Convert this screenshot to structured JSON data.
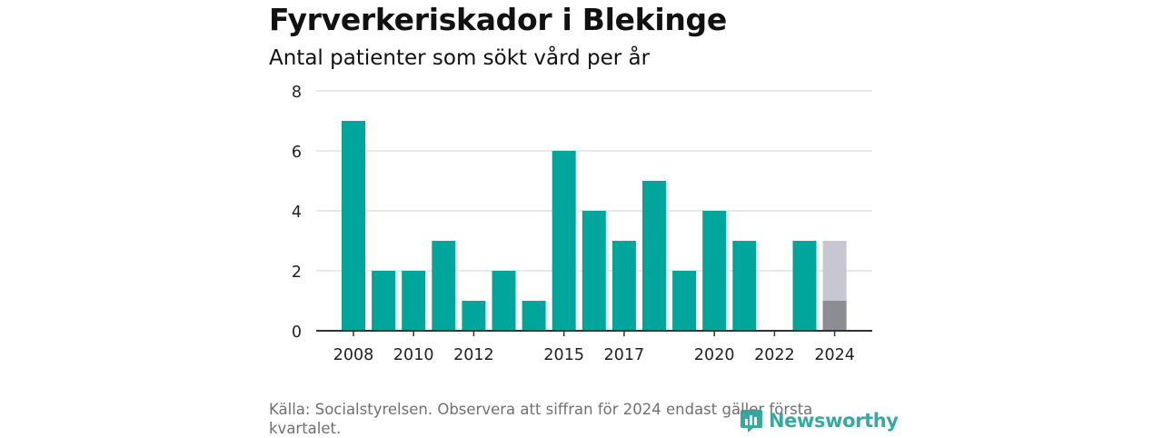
{
  "chart_data": {
    "type": "bar",
    "title": "Fyrverkeriskador i Blekinge",
    "subtitle": "Antal patienter som sökt vård per år",
    "categories": [
      2008,
      2009,
      2010,
      2011,
      2012,
      2013,
      2014,
      2015,
      2016,
      2017,
      2018,
      2019,
      2020,
      2021,
      2022,
      2023,
      2024
    ],
    "values": [
      7,
      2,
      2,
      3,
      1,
      2,
      1,
      6,
      4,
      3,
      5,
      2,
      4,
      3,
      0,
      3,
      1
    ],
    "highlight": {
      "category": 2024,
      "partial_value": 1,
      "full_value": 3,
      "partial_color": "#8c8c94",
      "full_color": "#c8c6d2"
    },
    "x_tick_labels": [
      "2008",
      "2010",
      "2012",
      "2015",
      "2017",
      "2020",
      "2022",
      "2024"
    ],
    "y_ticks": [
      0,
      2,
      4,
      6,
      8
    ],
    "ylim": [
      0,
      8
    ],
    "grid": true,
    "legend": "none",
    "colors": {
      "bar": "#00a59b",
      "grid": "#dcdcdc",
      "axis": "#333333",
      "tick_text": "#222222"
    }
  },
  "footer": {
    "source_text": "Källa: Socialstyrelsen. Observera att siffran för 2024 endast gäller första kvartalet."
  },
  "logo": {
    "text": "Newsworthy",
    "color": "#2aa39a"
  }
}
